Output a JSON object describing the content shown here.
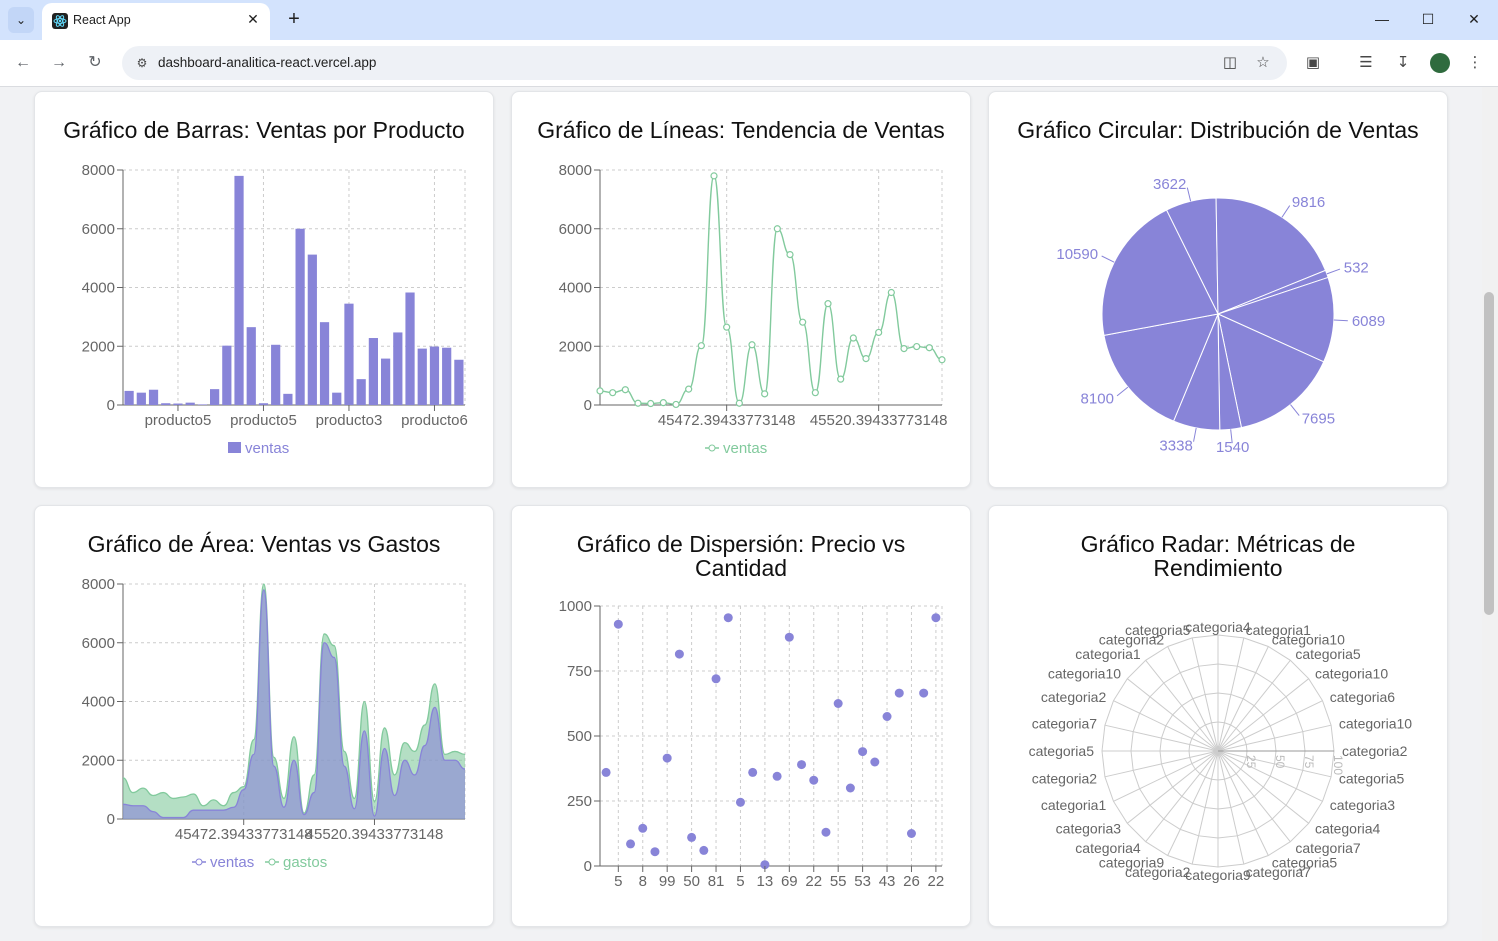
{
  "browser": {
    "tab_title": "React App",
    "url": "dashboard-analitica-react.vercel.app"
  },
  "charts": {
    "bar": {
      "title": "Gráfico de Barras: Ventas por Producto"
    },
    "line": {
      "title": "Gráfico de Líneas: Tendencia de Ventas"
    },
    "pie": {
      "title": "Gráfico Circular: Distribución de Ventas"
    },
    "area": {
      "title": "Gráfico de Área: Ventas vs Gastos"
    },
    "scatter": {
      "title_line1": "Gráfico de Dispersión: Precio vs",
      "title_line2": "Cantidad"
    },
    "radar": {
      "title_line1": "Gráfico Radar: Métricas de",
      "title_line2": "Rendimiento"
    }
  },
  "chart_data": [
    {
      "id": "bar",
      "type": "bar",
      "title": "Gráfico de Barras: Ventas por Producto",
      "ylim": [
        0,
        8000
      ],
      "yticks": [
        0,
        2000,
        4000,
        6000,
        8000
      ],
      "tick_labels": [
        "producto5",
        "producto5",
        "producto3",
        "producto6"
      ],
      "series": [
        {
          "name": "ventas",
          "color": "#8884d8",
          "values": [
            480,
            420,
            520,
            60,
            50,
            80,
            20,
            540,
            2020,
            7800,
            2650,
            60,
            2050,
            380,
            6000,
            5120,
            2820,
            420,
            3450,
            880,
            2280,
            1580,
            2470,
            3830,
            1920,
            1990,
            1950,
            1540
          ]
        }
      ]
    },
    {
      "id": "line",
      "type": "line",
      "title": "Gráfico de Líneas: Tendencia de Ventas",
      "ylim": [
        0,
        8000
      ],
      "yticks": [
        0,
        2000,
        4000,
        6000,
        8000
      ],
      "tick_labels": [
        "45472.39433773148",
        "45520.39433773148"
      ],
      "series": [
        {
          "name": "ventas",
          "color": "#82ca9d",
          "values": [
            480,
            420,
            520,
            60,
            50,
            80,
            20,
            540,
            2020,
            7800,
            2650,
            60,
            2050,
            380,
            6000,
            5120,
            2820,
            420,
            3450,
            880,
            2280,
            1580,
            2470,
            3830,
            1920,
            1990,
            1950,
            1540
          ]
        }
      ]
    },
    {
      "id": "pie",
      "type": "pie",
      "title": "Gráfico Circular: Distribución de Ventas",
      "color": "#8884d8",
      "slices": [
        3622,
        9816,
        532,
        6089,
        7695,
        1540,
        3338,
        8100,
        10590
      ]
    },
    {
      "id": "area",
      "type": "area",
      "title": "Gráfico de Área: Ventas vs Gastos",
      "ylim": [
        0,
        8000
      ],
      "yticks": [
        0,
        2000,
        4000,
        6000,
        8000
      ],
      "tick_labels": [
        "45472.39433773148",
        "45520.39433773148"
      ],
      "series": [
        {
          "name": "ventas",
          "color": "#8884d8",
          "values": [
            500,
            450,
            450,
            250,
            50,
            50,
            50,
            300,
            300,
            300,
            300,
            400,
            1000,
            2200,
            7800,
            1800,
            400,
            2000,
            150,
            900,
            6000,
            5500,
            1800,
            350,
            3000,
            100,
            2400,
            800,
            2000,
            1500,
            2500,
            3800,
            2000,
            2000,
            1700
          ]
        },
        {
          "name": "gastos",
          "color": "#82ca9d",
          "values": [
            1400,
            900,
            1050,
            800,
            900,
            700,
            750,
            850,
            450,
            650,
            450,
            900,
            1100,
            2700,
            8000,
            2100,
            700,
            2800,
            200,
            1500,
            6300,
            5900,
            2300,
            700,
            4000,
            600,
            3100,
            1500,
            2600,
            2300,
            3200,
            4600,
            2200,
            2300,
            2200
          ]
        }
      ]
    },
    {
      "id": "scatter",
      "type": "scatter",
      "title": "Gráfico de Dispersión: Precio vs Cantidad",
      "ylim": [
        0,
        1000
      ],
      "yticks": [
        0,
        250,
        500,
        750,
        1000
      ],
      "x": [
        "5",
        "8",
        "99",
        "50",
        "81",
        "5",
        "13",
        "69",
        "22",
        "55",
        "53",
        "43",
        "26",
        "22"
      ],
      "color": "#8884d8",
      "points": [
        [
          0,
          360
        ],
        [
          1,
          930
        ],
        [
          2,
          85
        ],
        [
          3,
          145
        ],
        [
          4,
          55
        ],
        [
          5,
          415
        ],
        [
          6,
          815
        ],
        [
          7,
          110
        ],
        [
          8,
          60
        ],
        [
          9,
          720
        ],
        [
          10,
          955
        ],
        [
          11,
          245
        ],
        [
          12,
          360
        ],
        [
          13,
          5
        ],
        [
          14,
          345
        ],
        [
          15,
          880
        ],
        [
          16,
          390
        ],
        [
          17,
          330
        ],
        [
          18,
          130
        ],
        [
          19,
          625
        ],
        [
          20,
          300
        ],
        [
          21,
          440
        ],
        [
          22,
          400
        ],
        [
          23,
          575
        ],
        [
          24,
          665
        ],
        [
          25,
          125
        ],
        [
          26,
          665
        ],
        [
          27,
          955
        ]
      ]
    },
    {
      "id": "radar",
      "type": "radar",
      "title": "Gráfico Radar: Métricas de Rendimiento",
      "radial_ticks": [
        "25",
        "50",
        "75",
        "100"
      ],
      "categories": [
        "categoria4",
        "categoria1",
        "categoria10",
        "categoria5",
        "categoria10",
        "categoria6",
        "categoria10",
        "categoria2",
        "categoria5",
        "categoria3",
        "categoria4",
        "categoria7",
        "categoria5",
        "categoria7",
        "categoria9",
        "categoria2",
        "categoria9",
        "categoria4",
        "categoria3",
        "categoria1",
        "categoria2",
        "categoria5",
        "categoria7",
        "categoria2",
        "categoria10",
        "categoria1",
        "categoria2",
        "categoria5"
      ]
    }
  ]
}
